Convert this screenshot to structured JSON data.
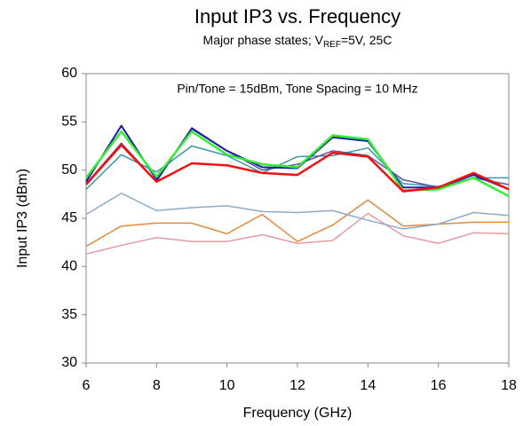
{
  "chart_data": {
    "type": "line",
    "title": "Input IP3 vs. Frequency",
    "subtitle": [
      "Major phase states; V",
      "REF",
      "=5V, 25C"
    ],
    "annotation": "Pin/Tone = 15dBm, Tone Spacing = 10 MHz",
    "x_label": "Frequency (GHz)",
    "y_label": "Input IP3 (dBm)",
    "x": [
      6,
      7,
      8,
      9,
      10,
      11,
      12,
      13,
      14,
      15,
      16,
      17,
      18
    ],
    "xlim": [
      6,
      18
    ],
    "xticks": [
      6,
      8,
      10,
      12,
      14,
      16,
      18
    ],
    "ylim": [
      30,
      60
    ],
    "yticks": [
      30,
      35,
      40,
      45,
      50,
      55,
      60
    ],
    "series": [
      {
        "color": "#e89aa0",
        "line_width": 1.5,
        "values": [
          41.3,
          42.2,
          43.0,
          42.6,
          42.6,
          43.3,
          42.4,
          42.7,
          45.5,
          43.2,
          42.4,
          43.5,
          43.4
        ]
      },
      {
        "color": "#e08a3c",
        "line_width": 1.5,
        "values": [
          42.1,
          44.2,
          44.5,
          44.5,
          43.4,
          45.4,
          42.6,
          44.3,
          46.9,
          44.2,
          44.4,
          44.6,
          44.6
        ]
      },
      {
        "color": "#8fa9cc",
        "line_width": 1.5,
        "values": [
          45.4,
          47.6,
          45.8,
          46.1,
          46.3,
          45.7,
          45.6,
          45.8,
          44.8,
          43.9,
          44.4,
          45.6,
          45.3
        ]
      },
      {
        "color": "#3a96a8",
        "line_width": 1.5,
        "values": [
          48.0,
          51.6,
          49.8,
          52.5,
          51.5,
          49.7,
          51.4,
          51.5,
          52.3,
          48.6,
          48.3,
          49.2,
          49.2
        ]
      },
      {
        "color": "#6a4c9c",
        "line_width": 1.5,
        "values": [
          48.6,
          52.8,
          48.8,
          54.4,
          52.0,
          50.0,
          50.6,
          52.0,
          51.5,
          49.0,
          48.2,
          49.2,
          48.5
        ]
      },
      {
        "color": "#1a1aa8",
        "line_width": 2,
        "values": [
          48.8,
          54.6,
          49.0,
          54.3,
          52.0,
          50.3,
          50.2,
          53.4,
          53.0,
          48.2,
          48.2,
          49.5,
          48.0
        ]
      },
      {
        "color": "#33ee33",
        "line_width": 2.5,
        "values": [
          49.2,
          54.0,
          49.3,
          54.0,
          51.6,
          50.6,
          50.3,
          53.6,
          53.2,
          47.9,
          48.0,
          49.2,
          47.3
        ]
      },
      {
        "color": "#ee1111",
        "line_width": 2.5,
        "values": [
          48.5,
          52.6,
          48.8,
          50.7,
          50.5,
          49.7,
          49.5,
          51.8,
          51.4,
          47.8,
          48.2,
          49.7,
          48.0
        ]
      }
    ]
  }
}
